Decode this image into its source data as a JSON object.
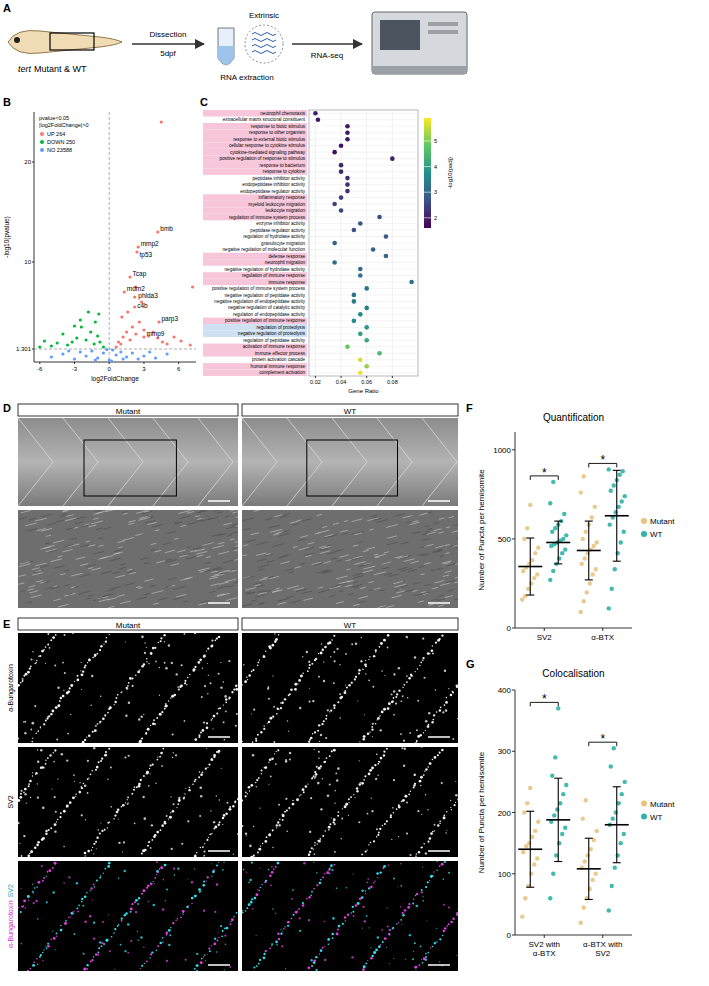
{
  "panel_letters": [
    "A",
    "B",
    "C",
    "D",
    "E",
    "F",
    "G"
  ],
  "schematic": {
    "fish_label_italic": "tert",
    "fish_label": "Mutant & WT",
    "step1_top": "Dissection",
    "step1_bottom": "5dpf",
    "tube_label": "Extrinsic",
    "step2_bottom": "RNA extraction",
    "step3_bottom": "RNA-seq"
  },
  "images_D": {
    "columns": [
      "Mutant",
      "WT"
    ]
  },
  "images_E": {
    "columns": [
      "Mutant",
      "WT"
    ],
    "rows": [
      "α-Bungarotoxin",
      "SV2"
    ],
    "merge_labels": [
      "α-Bungarotoxin",
      "SV2"
    ]
  },
  "chart_data": [
    {
      "type": "scatter",
      "x_label": "log2FoldChange",
      "y_label": "-log10(pvalue)",
      "legend_title": "pvalue<0.05 |log2FoldChange|>0",
      "legend": "top-left",
      "xlim": [
        -6.5,
        7.5
      ],
      "ylim": [
        0,
        25
      ],
      "xticks": [
        -6,
        -3,
        0,
        3,
        6
      ],
      "yticks": [
        1.301,
        10,
        20
      ],
      "thresholds": {
        "x": 0,
        "y": 1.301
      },
      "series": [
        {
          "name": "UP 264",
          "color": "#f8766d",
          "x": [
            0.6,
            0.8,
            1.0,
            1.2,
            1.5,
            1.8,
            2.0,
            2.3,
            2.6,
            3.0,
            3.4,
            3.8,
            4.2,
            4.6,
            5.0,
            5.6,
            6.2,
            7.0,
            1.1,
            1.6,
            2.2,
            2.8,
            4.5,
            4.2,
            2.5,
            2.4,
            1.8,
            1.3,
            2.3,
            2.2,
            4.3,
            3.0,
            7.2
          ],
          "values": [
            1.5,
            2.0,
            1.8,
            2.5,
            3.0,
            2.2,
            3.5,
            2.8,
            4.0,
            3.2,
            2.6,
            3.0,
            2.4,
            2.0,
            1.8,
            2.5,
            2.1,
            1.7,
            4.5,
            5.0,
            5.5,
            6.0,
            24.0,
            13,
            11.5,
            11,
            8.5,
            7,
            7.5,
            6.5,
            4,
            2.5,
            7.5
          ]
        },
        {
          "name": "DOWN 250",
          "color": "#00ba38",
          "x": [
            -0.5,
            -0.8,
            -1.0,
            -1.3,
            -1.6,
            -2.0,
            -2.4,
            -2.8,
            -3.2,
            -3.6,
            -4.0,
            -4.5,
            -5.0,
            -5.6,
            -6.0,
            -1.2,
            -1.8,
            -2.5,
            -3.0,
            -0.9
          ],
          "values": [
            1.5,
            2.0,
            2.6,
            1.8,
            3.0,
            2.2,
            3.5,
            2.4,
            2.0,
            1.7,
            2.8,
            1.9,
            1.6,
            2.1,
            1.5,
            4.0,
            5.0,
            4.2,
            3.6,
            4.8
          ]
        },
        {
          "name": "NO 23588",
          "color": "#619cff",
          "x": [
            -5,
            -4,
            -3,
            -2.5,
            -2,
            -1.5,
            -1,
            -0.5,
            0,
            0.3,
            0.6,
            1,
            1.5,
            2,
            2.5,
            3,
            4,
            5,
            -0.2,
            0.2,
            -1.2,
            1.2,
            -3.5,
            3.5
          ],
          "values": [
            0.5,
            0.8,
            0.3,
            1.0,
            0.6,
            1.1,
            0.4,
            0.9,
            0.2,
            1.2,
            0.7,
            1.0,
            0.5,
            0.9,
            0.3,
            0.6,
            0.4,
            0.8,
            1.25,
            0.1,
            0.2,
            0.3,
            1.1,
            1.0
          ]
        }
      ],
      "annotations": [
        {
          "text": "bmb",
          "x": 4.2,
          "y": 13
        },
        {
          "text": "mmp2",
          "x": 2.5,
          "y": 11.5
        },
        {
          "text": "tp53",
          "x": 2.4,
          "y": 11
        },
        {
          "text": "Tcap",
          "x": 1.8,
          "y": 8.5
        },
        {
          "text": "mdm2",
          "x": 1.3,
          "y": 7
        },
        {
          "text": "phlda3",
          "x": 2.3,
          "y": 7.5
        },
        {
          "text": "c4b",
          "x": 2.2,
          "y": 6.5
        },
        {
          "text": "parp3",
          "x": 4.3,
          "y": 4
        },
        {
          "text": "mmp9",
          "x": 3.0,
          "y": 2.5
        }
      ]
    },
    {
      "type": "dot",
      "x_label": "Gene Ratio",
      "xlim": [
        0.015,
        0.1
      ],
      "xticks": [
        0.02,
        0.04,
        0.06,
        0.08
      ],
      "grid": true,
      "categories": [
        "neutrophil chemotaxis",
        "extracellular matrix structural constituent",
        "response to biotic stimulus",
        "response to other organism",
        "response to external biotic stimulus",
        "cellular response to cytokine stimulus",
        "cytokine-mediated signaling pathway",
        "positive regulation of response to stimulus",
        "response to bacterium",
        "response to cytokine",
        "peptidase inhibitor activity",
        "endopeptidase inhibitor activity",
        "endopeptidase regulator activity",
        "inflammatory response",
        "myeloid leukocyte migration",
        "leukocyte migration",
        "regulation of immune system process",
        "enzyme inhibitor activity",
        "peptidase regulator activity",
        "regulation of hydrolase activity",
        "granulocyte migration",
        "negative regulation of molecular function",
        "defense response",
        "neutrophil migration",
        "negative regulation of hydrolase activity",
        "regulation of immune response",
        "immune response",
        "positive regulation of immune system process",
        "negative regulation of peptidase activity",
        "negative regulation of endopeptidase activity",
        "negative regulation of catalytic activity",
        "regulation of endopeptidase activity",
        "positive regulation of immune response",
        "regulation of proteolysis",
        "negative regulation of proteolysis",
        "regulation of peptidase activity",
        "activation of immune response",
        "immune effector process",
        "protein activation cascade",
        "humoral immune response",
        "complement activation"
      ],
      "values": [
        0.02,
        0.022,
        0.045,
        0.045,
        0.045,
        0.04,
        0.035,
        0.08,
        0.04,
        0.04,
        0.045,
        0.045,
        0.045,
        0.04,
        0.035,
        0.04,
        0.07,
        0.055,
        0.05,
        0.075,
        0.035,
        0.065,
        0.075,
        0.035,
        0.055,
        0.055,
        0.095,
        0.06,
        0.05,
        0.05,
        0.06,
        0.055,
        0.05,
        0.06,
        0.055,
        0.06,
        0.045,
        0.07,
        0.055,
        0.06,
        0.055
      ],
      "color_values": [
        2.0,
        1.9,
        1.9,
        1.9,
        1.9,
        1.8,
        1.8,
        2.0,
        2.1,
        2.1,
        2.2,
        2.2,
        2.2,
        2.4,
        2.5,
        2.5,
        2.6,
        2.7,
        2.7,
        2.8,
        2.9,
        3.0,
        3.0,
        3.1,
        3.1,
        3.2,
        3.2,
        3.3,
        3.3,
        3.4,
        3.5,
        3.6,
        3.7,
        3.9,
        4.0,
        4.2,
        4.8,
        4.5,
        5.6,
        5.2,
        5.8
      ],
      "color_label": "-log10(padj)",
      "color_lim": [
        1.6,
        5.9
      ],
      "color_ticks": [
        2,
        3,
        4,
        5
      ],
      "band_colors": [
        "#f7c6da",
        null,
        "#f7c6da",
        "#f7c6da",
        "#f7c6da",
        "#f7c6da",
        "#f7c6da",
        "#f7c6da",
        "#f7c6da",
        "#f7c6da",
        null,
        null,
        null,
        "#f7c6da",
        "#f7c6da",
        "#f7c6da",
        "#f7c6da",
        null,
        null,
        null,
        null,
        null,
        "#f7c6da",
        "#f7c6da",
        null,
        "#f7c6da",
        "#f7c6da",
        null,
        null,
        null,
        null,
        null,
        "#f7c6da",
        "#cfe0f2",
        "#cfe0f2",
        null,
        "#f7c6da",
        "#f7c6da",
        null,
        "#f7c6da",
        "#f7c6da"
      ]
    },
    {
      "type": "dot",
      "title": "Quantification",
      "y_label": "Number of Puncta per hemisomite",
      "categories": [
        "SV2",
        "α-BTX"
      ],
      "ylim": [
        0,
        1100
      ],
      "yticks": [
        0,
        500,
        1000
      ],
      "legend": "right",
      "significance": [
        "*",
        "*"
      ],
      "series": [
        {
          "name": "Mutant",
          "color": "#e9c37f",
          "values": [
            [
              160,
              180,
              220,
              250,
              280,
              300,
              320,
              340,
              360,
              380,
              420,
              450,
              500,
              560,
              690
            ],
            [
              90,
              150,
              200,
              250,
              300,
              330,
              360,
              390,
              420,
              440,
              460,
              480,
              500,
              540,
              580,
              620,
              680,
              760,
              850
            ]
          ],
          "means": [
            345,
            435
          ],
          "sd": [
            160,
            165
          ]
        },
        {
          "name": "WT",
          "color": "#2eb3a6",
          "values": [
            [
              270,
              320,
              360,
              390,
              420,
              440,
              460,
              470,
              480,
              490,
              500,
              520,
              540,
              560,
              580,
              600,
              640,
              700,
              820
            ],
            [
              110,
              220,
              330,
              420,
              480,
              540,
              580,
              620,
              650,
              680,
              710,
              740,
              770,
              800,
              830,
              860,
              880,
              890
            ]
          ],
          "means": [
            480,
            630
          ],
          "sd": [
            120,
            255
          ]
        }
      ]
    },
    {
      "type": "dot",
      "title": "Colocalisation",
      "y_label": "Number of Puncta per hemisomite",
      "categories": [
        "SV2 with α-BTX",
        "α-BTX with SV2"
      ],
      "ylim": [
        0,
        400
      ],
      "yticks": [
        0,
        100,
        200,
        300,
        400
      ],
      "legend": "right",
      "significance": [
        "*",
        "*"
      ],
      "series": [
        {
          "name": "Mutant",
          "color": "#e9c37f",
          "values": [
            [
              30,
              60,
              80,
              100,
              115,
              125,
              135,
              145,
              150,
              160,
              170,
              185,
              200,
              215,
              240
            ],
            [
              20,
              45,
              60,
              75,
              90,
              100,
              110,
              120,
              130,
              140,
              155,
              170,
              190,
              220
            ]
          ],
          "means": [
            140,
            108
          ],
          "sd": [
            62,
            50
          ]
        },
        {
          "name": "WT",
          "color": "#2eb3a6",
          "values": [
            [
              60,
              100,
              130,
              150,
              165,
              175,
              185,
              195,
              205,
              215,
              230,
              245,
              260,
              290,
              370
            ],
            [
              40,
              80,
              110,
              130,
              150,
              165,
              180,
              190,
              200,
              215,
              230,
              250,
              275,
              305
            ]
          ],
          "means": [
            188,
            180
          ],
          "sd": [
            68,
            62
          ]
        }
      ]
    }
  ]
}
